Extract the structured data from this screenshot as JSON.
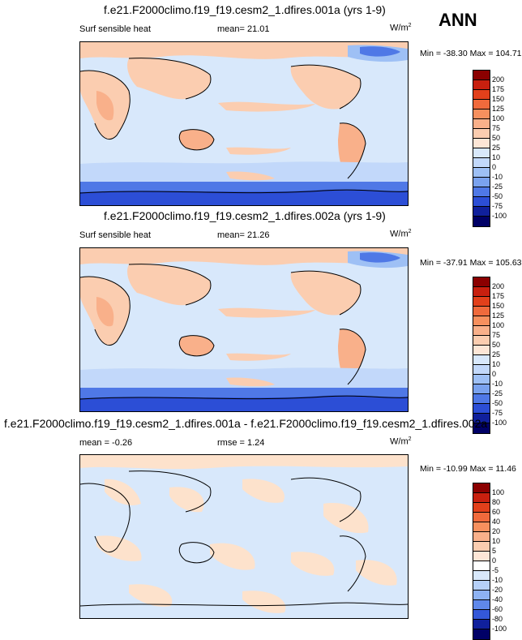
{
  "season": "ANN",
  "panels": [
    {
      "title": "f.e21.F2000climo.f19_f19.cesm2_1.dfires.001a (yrs 1-9)",
      "variable": "Surf sensible heat",
      "stat_label": "mean=",
      "stat_value": "21.01",
      "units": "W/m",
      "units_sup": "2",
      "minmax": "Min = -38.30 Max = 104.71",
      "colorbar_labels": [
        "200",
        "175",
        "150",
        "125",
        "100",
        "75",
        "50",
        "25",
        "10",
        "0",
        "-10",
        "-25",
        "-50",
        "-75",
        "-100"
      ],
      "colorbar_colors": [
        "#8b0000",
        "#c8200f",
        "#e2401b",
        "#f06a3c",
        "#f7905e",
        "#f9b08a",
        "#fbcdb0",
        "#fde6d6",
        "#d8e8fb",
        "#c2d8fa",
        "#9ec0f5",
        "#7aa2ee",
        "#4f78e6",
        "#2c4ed6",
        "#10209c",
        "#000066"
      ]
    },
    {
      "title": "f.e21.F2000climo.f19_f19.cesm2_1.dfires.002a (yrs 1-9)",
      "variable": "Surf sensible heat",
      "stat_label": "mean=",
      "stat_value": "21.26",
      "units": "W/m",
      "units_sup": "2",
      "minmax": "Min = -37.91 Max = 105.63",
      "colorbar_labels": [
        "200",
        "175",
        "150",
        "125",
        "100",
        "75",
        "50",
        "25",
        "10",
        "0",
        "-10",
        "-25",
        "-50",
        "-75",
        "-100"
      ],
      "colorbar_colors": [
        "#8b0000",
        "#c8200f",
        "#e2401b",
        "#f06a3c",
        "#f7905e",
        "#f9b08a",
        "#fbcdb0",
        "#fde6d6",
        "#d8e8fb",
        "#c2d8fa",
        "#9ec0f5",
        "#7aa2ee",
        "#4f78e6",
        "#2c4ed6",
        "#10209c",
        "#000066"
      ]
    },
    {
      "title": "f.e21.F2000climo.f19_f19.cesm2_1.dfires.001a - f.e21.F2000climo.f19_f19.cesm2_1.dfires.002a",
      "variable": "mean =  -0.26",
      "stat_label": "rmse =",
      "stat_value": "1.24",
      "units": "W/m",
      "units_sup": "2",
      "minmax": "Min = -10.99 Max = 11.46",
      "colorbar_labels": [
        "100",
        "80",
        "60",
        "40",
        "20",
        "10",
        "5",
        "0",
        "-5",
        "-10",
        "-20",
        "-40",
        "-60",
        "-80",
        "-100"
      ],
      "colorbar_colors": [
        "#8b0000",
        "#c8200f",
        "#e2401b",
        "#f06a3c",
        "#f7905e",
        "#f9b08a",
        "#fbcdb0",
        "#fde6d6",
        "#ffffff",
        "#d8e8fb",
        "#b6d0f8",
        "#8eb2f2",
        "#5f88ea",
        "#3458d8",
        "#10209c",
        "#000066"
      ]
    }
  ],
  "map_colors": {
    "ocean": "#d8e8fb",
    "warm1": "#fbcdb0",
    "warm2": "#f9b08a",
    "cool1": "#9ec0f5",
    "cool2": "#4f78e6",
    "cool3": "#2c4ed6",
    "diffwarm": "#fde2cc"
  }
}
